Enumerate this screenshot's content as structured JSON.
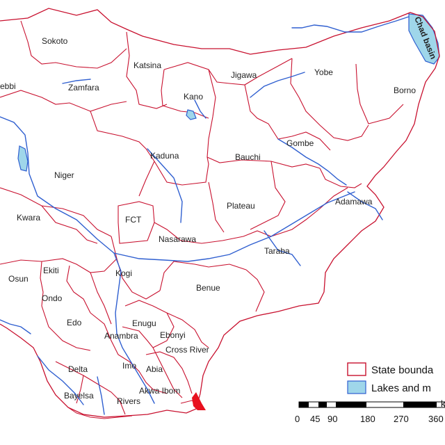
{
  "map": {
    "colors": {
      "boundary": "#c8102e",
      "water": "#2f5fd0",
      "lake_fill": "#9fd6ea",
      "background": "#ffffff"
    },
    "lake_label": "Chad basin",
    "states": [
      {
        "name": "Sokoto"
      },
      {
        "name": "Kebbi",
        "shown": "ebbi"
      },
      {
        "name": "Zamfara"
      },
      {
        "name": "Katsina"
      },
      {
        "name": "Jigawa"
      },
      {
        "name": "Kano"
      },
      {
        "name": "Yobe"
      },
      {
        "name": "Borno"
      },
      {
        "name": "Kaduna"
      },
      {
        "name": "Bauchi"
      },
      {
        "name": "Gombe"
      },
      {
        "name": "Niger"
      },
      {
        "name": "Plateau"
      },
      {
        "name": "Adamawa"
      },
      {
        "name": "Kwara"
      },
      {
        "name": "FCT"
      },
      {
        "name": "Nasarawa"
      },
      {
        "name": "Taraba"
      },
      {
        "name": "Osun"
      },
      {
        "name": "Ekiti"
      },
      {
        "name": "Kogi"
      },
      {
        "name": "Ondo"
      },
      {
        "name": "Benue"
      },
      {
        "name": "Edo"
      },
      {
        "name": "Enugu"
      },
      {
        "name": "Anambra"
      },
      {
        "name": "Ebonyi"
      },
      {
        "name": "Cross River"
      },
      {
        "name": "Delta"
      },
      {
        "name": "Imo"
      },
      {
        "name": "Abia"
      },
      {
        "name": "Akwa Ibom"
      },
      {
        "name": "Bayelsa"
      },
      {
        "name": "Rivers"
      }
    ]
  },
  "legend": {
    "items": [
      {
        "label": "State bounda",
        "swatch": "boundary"
      },
      {
        "label": "Lakes and m",
        "swatch": "lake"
      }
    ]
  },
  "scale_bar": {
    "ticks": [
      "0",
      "45",
      "90",
      "180",
      "270",
      "360"
    ],
    "unit_fragment": "k"
  }
}
